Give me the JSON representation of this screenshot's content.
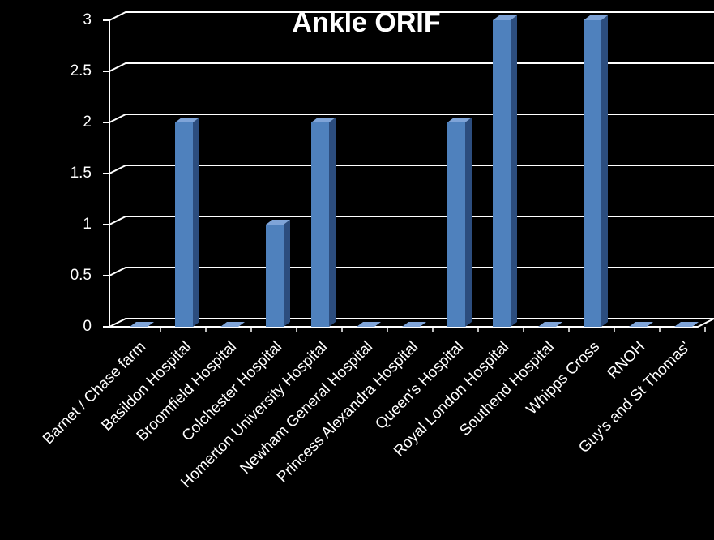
{
  "chart_data": {
    "type": "bar",
    "title": "Ankle ORIF",
    "categories": [
      "Barnet / Chase farm",
      "Basildon Hospital",
      "Broomfield Hospital",
      "Colchester Hospital",
      "Homerton University Hospital",
      "Newham General Hospital",
      "Princess Alexandra Hospital",
      "Queen's Hospital",
      "Royal London Hospital",
      "Southend Hospital",
      "Whipps Cross",
      "RNOH",
      "Guy's and St Thomas'"
    ],
    "values": [
      0,
      2,
      0,
      1,
      2,
      0,
      0,
      2,
      3,
      0,
      3,
      0,
      0
    ],
    "color": "#4f81bd",
    "ylim": [
      0,
      3
    ],
    "yticks": [
      0,
      0.5,
      1,
      1.5,
      2,
      2.5,
      3
    ],
    "grid": true
  }
}
